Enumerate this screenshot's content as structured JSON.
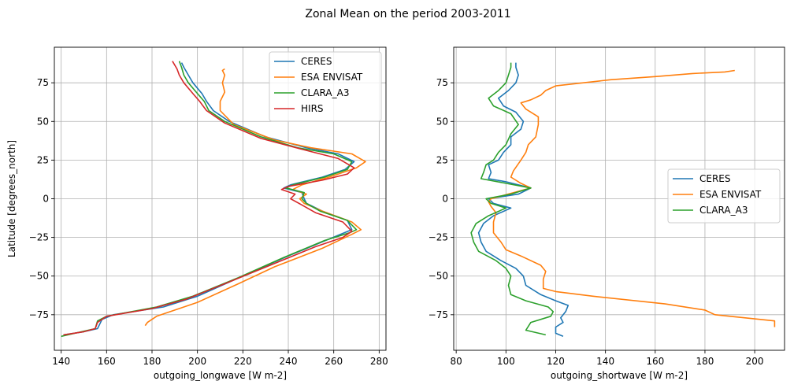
{
  "suptitle": "Zonal Mean on the period 2003-2011",
  "chart_data": [
    {
      "type": "line",
      "xlabel": "outgoing_longwave [W m-2]",
      "ylabel": "Latitude [degrees_north]",
      "xlim": [
        137,
        283
      ],
      "ylim": [
        -98,
        98
      ],
      "xticks": [
        140,
        160,
        180,
        200,
        220,
        240,
        260,
        280
      ],
      "yticks": [
        -75,
        -50,
        -25,
        0,
        25,
        50,
        75
      ],
      "grid": true,
      "legend_loc": "top-right",
      "series": [
        {
          "name": "CERES",
          "color": "#1f77b4",
          "points": [
            [
              141,
              -88
            ],
            [
              150,
              -86
            ],
            [
              156,
              -84
            ],
            [
              158,
              -78
            ],
            [
              163,
              -75
            ],
            [
              185,
              -70
            ],
            [
              200,
              -63
            ],
            [
              220,
              -50
            ],
            [
              240,
              -37
            ],
            [
              258,
              -26
            ],
            [
              268,
              -20
            ],
            [
              266,
              -14
            ],
            [
              255,
              -8
            ],
            [
              248,
              -3
            ],
            [
              247,
              0
            ],
            [
              246,
              4
            ],
            [
              238,
              7
            ],
            [
              241,
              9
            ],
            [
              255,
              14
            ],
            [
              265,
              19
            ],
            [
              269,
              24
            ],
            [
              262,
              29
            ],
            [
              248,
              33
            ],
            [
              230,
              40
            ],
            [
              214,
              50
            ],
            [
              207,
              57
            ],
            [
              204,
              63
            ],
            [
              202,
              68
            ],
            [
              198,
              75
            ],
            [
              196,
              80
            ],
            [
              194,
              85
            ],
            [
              193,
              88
            ]
          ]
        },
        {
          "name": "ESA ENVISAT",
          "color": "#ff7f0e",
          "points": [
            [
              177,
              -82
            ],
            [
              178,
              -80
            ],
            [
              182,
              -76
            ],
            [
              200,
              -67
            ],
            [
              218,
              -55
            ],
            [
              234,
              -44
            ],
            [
              255,
              -32
            ],
            [
              268,
              -23
            ],
            [
              272,
              -20
            ],
            [
              268,
              -15
            ],
            [
              255,
              -8
            ],
            [
              247,
              -3
            ],
            [
              245,
              0
            ],
            [
              248,
              3
            ],
            [
              242,
              6
            ],
            [
              246,
              9
            ],
            [
              258,
              14
            ],
            [
              270,
              20
            ],
            [
              274,
              24
            ],
            [
              268,
              29
            ],
            [
              250,
              33
            ],
            [
              234,
              38
            ],
            [
              216,
              48
            ],
            [
              210,
              57
            ],
            [
              210,
              63
            ],
            [
              212,
              69
            ],
            [
              211,
              75
            ],
            [
              212,
              80
            ],
            [
              211,
              83
            ],
            [
              212,
              84
            ]
          ]
        },
        {
          "name": "CLARA_A3",
          "color": "#2ca02c",
          "points": [
            [
              140,
              -89
            ],
            [
              149,
              -86
            ],
            [
              155,
              -84
            ],
            [
              156,
              -79
            ],
            [
              160,
              -76
            ],
            [
              182,
              -70
            ],
            [
              198,
              -63
            ],
            [
              218,
              -51
            ],
            [
              238,
              -38
            ],
            [
              256,
              -27
            ],
            [
              267,
              -22
            ],
            [
              270,
              -20
            ],
            [
              266,
              -14
            ],
            [
              254,
              -8
            ],
            [
              248,
              -3
            ],
            [
              246,
              0
            ],
            [
              247,
              4
            ],
            [
              239,
              7
            ],
            [
              242,
              9
            ],
            [
              256,
              14
            ],
            [
              266,
              19
            ],
            [
              268,
              24
            ],
            [
              260,
              29
            ],
            [
              244,
              33
            ],
            [
              228,
              40
            ],
            [
              212,
              50
            ],
            [
              205,
              57
            ],
            [
              203,
              63
            ],
            [
              200,
              68
            ],
            [
              196,
              75
            ],
            [
              194,
              80
            ],
            [
              193,
              85
            ],
            [
              192,
              89
            ]
          ]
        },
        {
          "name": "HIRS",
          "color": "#d62728",
          "points": [
            [
              141,
              -88
            ],
            [
              150,
              -86
            ],
            [
              155,
              -84
            ],
            [
              156,
              -80
            ],
            [
              160,
              -76
            ],
            [
              180,
              -71
            ],
            [
              195,
              -65
            ],
            [
              212,
              -55
            ],
            [
              232,
              -43
            ],
            [
              252,
              -31
            ],
            [
              264,
              -25
            ],
            [
              268,
              -21
            ],
            [
              264,
              -15
            ],
            [
              252,
              -9
            ],
            [
              246,
              -4
            ],
            [
              241,
              0
            ],
            [
              243,
              3
            ],
            [
              237,
              6
            ],
            [
              240,
              8
            ],
            [
              255,
              12
            ],
            [
              266,
              16
            ],
            [
              269,
              20
            ],
            [
              262,
              26
            ],
            [
              246,
              32
            ],
            [
              228,
              39
            ],
            [
              212,
              49
            ],
            [
              204,
              57
            ],
            [
              201,
              63
            ],
            [
              198,
              68
            ],
            [
              194,
              75
            ],
            [
              192,
              80
            ],
            [
              191,
              84
            ],
            [
              189,
              89
            ]
          ]
        }
      ]
    },
    {
      "type": "line",
      "xlabel": "outgoing_shortwave [W m-2]",
      "ylabel": "",
      "xlim": [
        79,
        212
      ],
      "ylim": [
        -98,
        98
      ],
      "xticks": [
        80,
        100,
        120,
        140,
        160,
        180,
        200
      ],
      "yticks": [
        -75,
        -50,
        -25,
        0,
        25,
        50,
        75
      ],
      "grid": true,
      "legend_loc": "center-right",
      "series": [
        {
          "name": "CERES",
          "color": "#1f77b4",
          "points": [
            [
              123,
              -89
            ],
            [
              120,
              -87
            ],
            [
              120,
              -83
            ],
            [
              123,
              -80
            ],
            [
              122,
              -77
            ],
            [
              124,
              -73
            ],
            [
              125,
              -69
            ],
            [
              120,
              -66
            ],
            [
              114,
              -62
            ],
            [
              108,
              -56
            ],
            [
              107,
              -50
            ],
            [
              104,
              -45
            ],
            [
              98,
              -40
            ],
            [
              92,
              -34
            ],
            [
              90,
              -28
            ],
            [
              89,
              -22
            ],
            [
              91,
              -16
            ],
            [
              95,
              -11
            ],
            [
              102,
              -6
            ],
            [
              95,
              -3
            ],
            [
              93,
              0
            ],
            [
              105,
              3
            ],
            [
              110,
              7
            ],
            [
              100,
              11
            ],
            [
              93,
              13
            ],
            [
              94,
              17
            ],
            [
              93,
              22
            ],
            [
              97,
              25
            ],
            [
              99,
              30
            ],
            [
              102,
              35
            ],
            [
              102,
              40
            ],
            [
              106,
              45
            ],
            [
              107,
              50
            ],
            [
              104,
              56
            ],
            [
              99,
              60
            ],
            [
              97,
              65
            ],
            [
              101,
              70
            ],
            [
              104,
              75
            ],
            [
              105,
              80
            ],
            [
              104,
              85
            ],
            [
              104,
              88
            ]
          ]
        },
        {
          "name": "ESA ENVISAT",
          "color": "#ff7f0e",
          "points": [
            [
              208,
              -83
            ],
            [
              208,
              -79
            ],
            [
              184,
              -75
            ],
            [
              180,
              -72
            ],
            [
              164,
              -68
            ],
            [
              135,
              -63
            ],
            [
              120,
              -60
            ],
            [
              115,
              -58
            ],
            [
              115,
              -52
            ],
            [
              116,
              -47
            ],
            [
              114,
              -43
            ],
            [
              106,
              -37
            ],
            [
              100,
              -33
            ],
            [
              98,
              -28
            ],
            [
              95,
              -22
            ],
            [
              95,
              -15
            ],
            [
              96,
              -9
            ],
            [
              94,
              -5
            ],
            [
              93,
              -2
            ],
            [
              94,
              0
            ],
            [
              110,
              7
            ],
            [
              106,
              10
            ],
            [
              102,
              14
            ],
            [
              103,
              18
            ],
            [
              106,
              25
            ],
            [
              108,
              30
            ],
            [
              109,
              35
            ],
            [
              112,
              40
            ],
            [
              113,
              48
            ],
            [
              113,
              53
            ],
            [
              108,
              58
            ],
            [
              106,
              62
            ],
            [
              110,
              64
            ],
            [
              114,
              67
            ],
            [
              116,
              70
            ],
            [
              120,
              73
            ],
            [
              142,
              77
            ],
            [
              160,
              79
            ],
            [
              175,
              81
            ],
            [
              188,
              82
            ],
            [
              192,
              83
            ]
          ]
        },
        {
          "name": "CLARA_A3",
          "color": "#2ca02c",
          "points": [
            [
              116,
              -88
            ],
            [
              108,
              -85
            ],
            [
              110,
              -80
            ],
            [
              118,
              -76
            ],
            [
              119,
              -73
            ],
            [
              117,
              -70
            ],
            [
              108,
              -66
            ],
            [
              102,
              -62
            ],
            [
              101,
              -56
            ],
            [
              102,
              -50
            ],
            [
              100,
              -45
            ],
            [
              96,
              -40
            ],
            [
              89,
              -34
            ],
            [
              87,
              -28
            ],
            [
              86,
              -22
            ],
            [
              88,
              -16
            ],
            [
              93,
              -11
            ],
            [
              100,
              -6
            ],
            [
              94,
              -3
            ],
            [
              92,
              0
            ],
            [
              102,
              3
            ],
            [
              110,
              7
            ],
            [
              100,
              10
            ],
            [
              90,
              13
            ],
            [
              91,
              17
            ],
            [
              92,
              22
            ],
            [
              95,
              25
            ],
            [
              97,
              30
            ],
            [
              100,
              35
            ],
            [
              102,
              42
            ],
            [
              105,
              48
            ],
            [
              102,
              55
            ],
            [
              95,
              60
            ],
            [
              93,
              65
            ],
            [
              97,
              70
            ],
            [
              100,
              75
            ],
            [
              101,
              80
            ],
            [
              102,
              85
            ],
            [
              102,
              88
            ]
          ]
        }
      ]
    }
  ]
}
